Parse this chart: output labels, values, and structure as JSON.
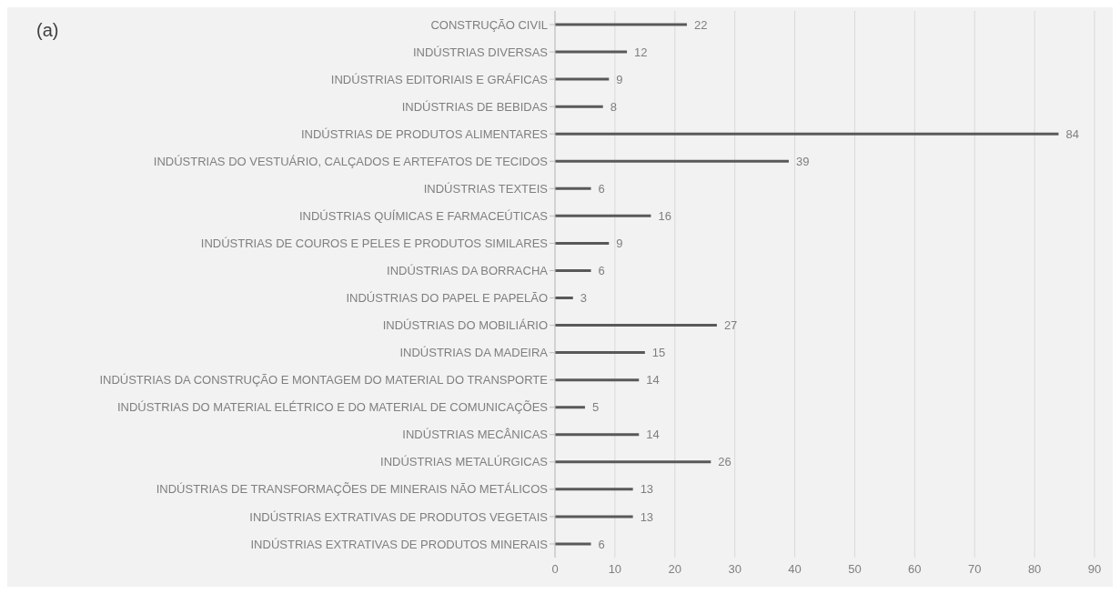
{
  "chart_data": {
    "type": "bar",
    "orientation": "horizontal",
    "annotations": [
      "(a)"
    ],
    "categories": [
      "CONSTRUÇÃO CIVIL",
      "INDÚSTRIAS DIVERSAS",
      "INDÚSTRIAS EDITORIAIS E GRÁFICAS",
      "INDÚSTRIAS DE BEBIDAS",
      "INDÚSTRIAS DE PRODUTOS ALIMENTARES",
      "INDÚSTRIAS DO VESTUÁRIO, CALÇADOS E ARTEFATOS DE TECIDOS",
      "INDÚSTRIAS TEXTEIS",
      "INDÚSTRIAS QUÍMICAS E FARMACEÚTICAS",
      "INDÚSTRIAS DE COUROS E PELES E PRODUTOS SIMILARES",
      "INDÚSTRIAS DA BORRACHA",
      "INDÚSTRIAS DO PAPEL E PAPELÃO",
      "INDÚSTRIAS DO MOBILIÁRIO",
      "INDÚSTRIAS DA MADEIRA",
      "INDÚSTRIAS DA CONSTRUÇÃO E MONTAGEM DO MATERIAL DO TRANSPORTE",
      "INDÚSTRIAS DO MATERIAL ELÉTRICO E DO MATERIAL DE COMUNICAÇÕES",
      "INDÚSTRIAS MECÂNICAS",
      "INDÚSTRIAS METALÚRGICAS",
      "INDÚSTRIAS DE TRANSFORMAÇÕES DE MINERAIS NÃO METÁLICOS",
      "INDÚSTRIAS EXTRATIVAS DE PRODUTOS VEGETAIS",
      "INDÚSTRIAS EXTRATIVAS DE PRODUTOS MINERAIS"
    ],
    "values": [
      22,
      12,
      9,
      8,
      84,
      39,
      6,
      16,
      9,
      6,
      3,
      27,
      15,
      14,
      5,
      14,
      26,
      13,
      13,
      6
    ],
    "color": "#595959",
    "xlim": [
      0,
      90
    ],
    "xticks": [
      0,
      10,
      20,
      30,
      40,
      50,
      60,
      70,
      80,
      90
    ],
    "grid": "x",
    "data_labels": true
  }
}
